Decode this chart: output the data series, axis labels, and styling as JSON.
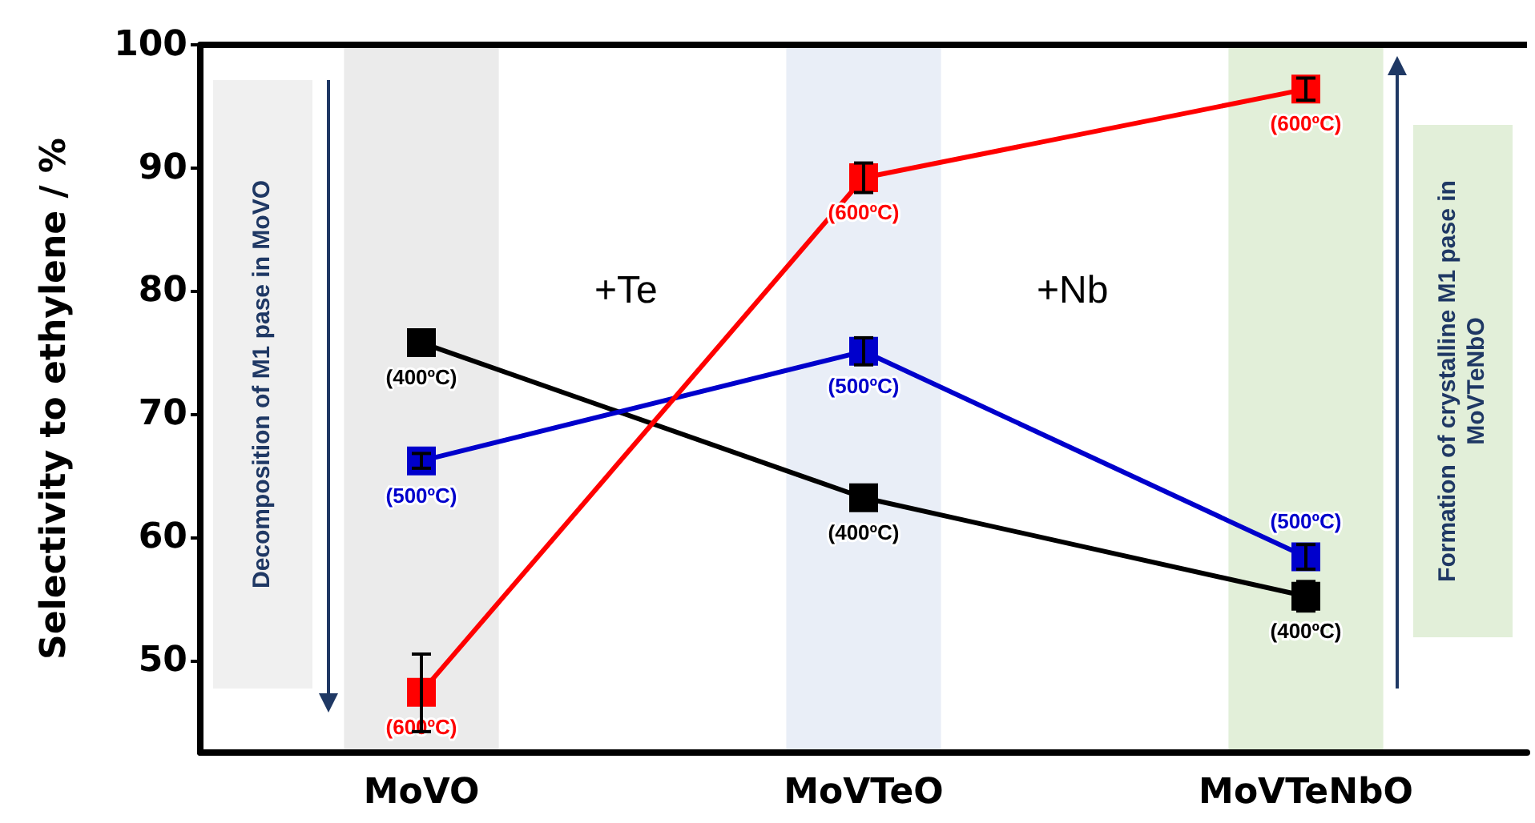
{
  "chart_data": {
    "type": "line",
    "ylabel": "Selectivity to ethylene / %",
    "categories": [
      "MoVO",
      "MoVTeO",
      "MoVTeNbO"
    ],
    "series": [
      {
        "name": "(400ºC)",
        "color": "#000000",
        "values": [
          75.8,
          63.2,
          55.2
        ],
        "errors": [
          1,
          0.4,
          1.2
        ]
      },
      {
        "name": "(500ºC)",
        "color": "#0000cc",
        "values": [
          66.2,
          75.1,
          58.4
        ],
        "errors": [
          0.6,
          1.1,
          1
        ]
      },
      {
        "name": "(600ºC)",
        "color": "#ff0000",
        "values": [
          47.4,
          89.2,
          96.4
        ],
        "errors": [
          [
            44.2,
            50.5
          ],
          1.2,
          0.9
        ]
      }
    ],
    "ylim": [
      42.5,
      100
    ],
    "yticks": [
      50,
      60,
      70,
      80,
      90,
      100
    ],
    "bands": [
      {
        "axis": "x",
        "from": "MoVO",
        "to": "MoVO",
        "color": "#ebebeb"
      },
      {
        "axis": "x",
        "from": "MoVTeO",
        "to": "MoVTeO",
        "color": "#e9eef7"
      },
      {
        "axis": "x",
        "from": "MoVTeNbO",
        "to": "MoVTeNbO",
        "color": "#e2efd9"
      }
    ],
    "annotations": [
      "+Te",
      "+Nb",
      "Decomposition of  M1 pase in MoVO",
      "Formation of crystalline M1 pase in MoVTeNbO"
    ],
    "marker": "square",
    "grid": false,
    "legend": false
  }
}
